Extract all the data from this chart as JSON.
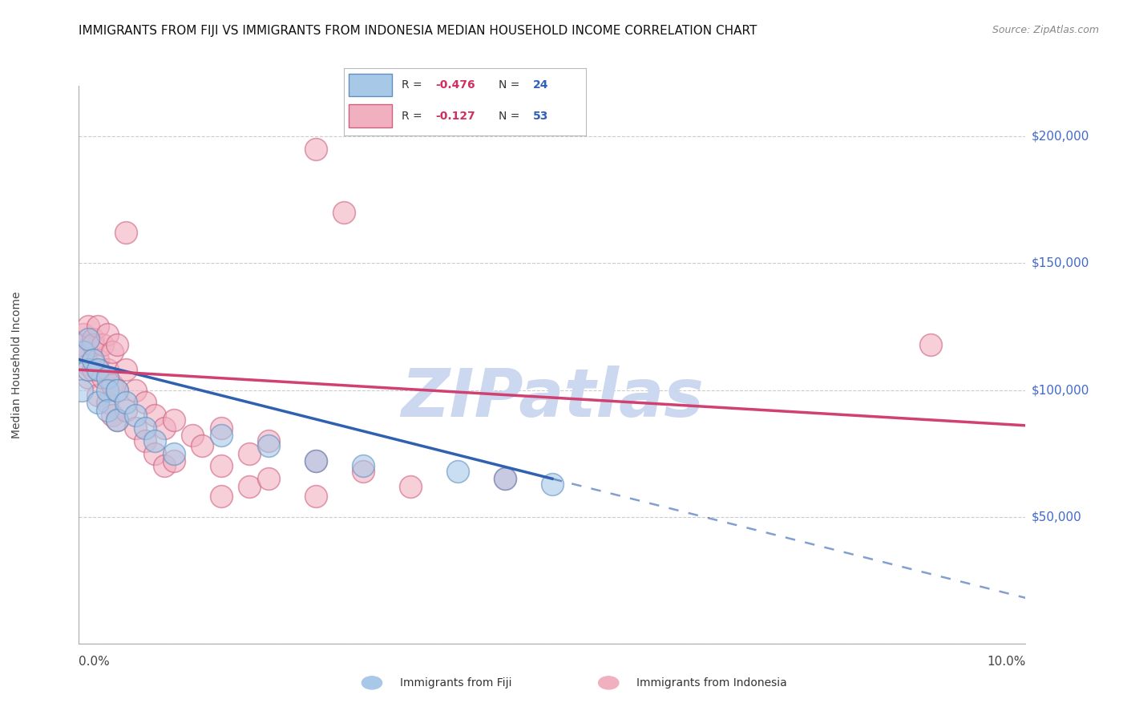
{
  "title": "IMMIGRANTS FROM FIJI VS IMMIGRANTS FROM INDONESIA MEDIAN HOUSEHOLD INCOME CORRELATION CHART",
  "source": "Source: ZipAtlas.com",
  "ylabel": "Median Household Income",
  "yticks": [
    0,
    50000,
    100000,
    150000,
    200000
  ],
  "ytick_labels": [
    "",
    "$50,000",
    "$100,000",
    "$150,000",
    "$200,000"
  ],
  "ytick_color": "#4169c8",
  "xlim": [
    0.0,
    0.1
  ],
  "ylim": [
    0,
    220000
  ],
  "fiji_color": "#a8c8e8",
  "fiji_color_edge": "#6090c0",
  "indonesia_color": "#f0b0c0",
  "indonesia_color_edge": "#d06080",
  "fiji_R": -0.476,
  "fiji_N": 24,
  "indonesia_R": -0.127,
  "indonesia_N": 53,
  "watermark_text": "ZIPatlas",
  "fiji_points": [
    [
      0.0003,
      100000
    ],
    [
      0.0005,
      115000
    ],
    [
      0.001,
      120000
    ],
    [
      0.001,
      108000
    ],
    [
      0.0015,
      112000
    ],
    [
      0.002,
      108000
    ],
    [
      0.002,
      95000
    ],
    [
      0.003,
      105000
    ],
    [
      0.003,
      100000
    ],
    [
      0.003,
      92000
    ],
    [
      0.004,
      100000
    ],
    [
      0.004,
      88000
    ],
    [
      0.005,
      95000
    ],
    [
      0.006,
      90000
    ],
    [
      0.007,
      85000
    ],
    [
      0.008,
      80000
    ],
    [
      0.01,
      75000
    ],
    [
      0.015,
      82000
    ],
    [
      0.02,
      78000
    ],
    [
      0.025,
      72000
    ],
    [
      0.03,
      70000
    ],
    [
      0.04,
      68000
    ],
    [
      0.045,
      65000
    ],
    [
      0.05,
      63000
    ]
  ],
  "indonesia_points": [
    [
      0.0004,
      118000
    ],
    [
      0.0005,
      122000
    ],
    [
      0.0008,
      115000
    ],
    [
      0.001,
      125000
    ],
    [
      0.001,
      110000
    ],
    [
      0.001,
      105000
    ],
    [
      0.0015,
      120000
    ],
    [
      0.0015,
      108000
    ],
    [
      0.0015,
      118000
    ],
    [
      0.002,
      125000
    ],
    [
      0.002,
      112000
    ],
    [
      0.002,
      98000
    ],
    [
      0.0025,
      118000
    ],
    [
      0.0025,
      105000
    ],
    [
      0.003,
      122000
    ],
    [
      0.003,
      108000
    ],
    [
      0.003,
      95000
    ],
    [
      0.0035,
      115000
    ],
    [
      0.0035,
      102000
    ],
    [
      0.0035,
      90000
    ],
    [
      0.004,
      118000
    ],
    [
      0.004,
      100000
    ],
    [
      0.004,
      88000
    ],
    [
      0.005,
      108000
    ],
    [
      0.005,
      92000
    ],
    [
      0.005,
      162000
    ],
    [
      0.006,
      100000
    ],
    [
      0.006,
      85000
    ],
    [
      0.007,
      95000
    ],
    [
      0.007,
      80000
    ],
    [
      0.008,
      90000
    ],
    [
      0.008,
      75000
    ],
    [
      0.009,
      85000
    ],
    [
      0.009,
      70000
    ],
    [
      0.01,
      88000
    ],
    [
      0.01,
      72000
    ],
    [
      0.012,
      82000
    ],
    [
      0.013,
      78000
    ],
    [
      0.015,
      85000
    ],
    [
      0.015,
      70000
    ],
    [
      0.015,
      58000
    ],
    [
      0.018,
      75000
    ],
    [
      0.018,
      62000
    ],
    [
      0.02,
      80000
    ],
    [
      0.02,
      65000
    ],
    [
      0.025,
      72000
    ],
    [
      0.025,
      58000
    ],
    [
      0.025,
      195000
    ],
    [
      0.028,
      170000
    ],
    [
      0.03,
      68000
    ],
    [
      0.035,
      62000
    ],
    [
      0.045,
      65000
    ],
    [
      0.09,
      118000
    ]
  ],
  "fiji_line_color": "#3060b0",
  "indonesia_line_color": "#d04070",
  "bg_color": "#ffffff",
  "grid_color": "#cccccc",
  "title_fontsize": 11,
  "label_fontsize": 10,
  "tick_fontsize": 11,
  "watermark_color": "#ccd8f0",
  "watermark_fontsize": 60,
  "legend_fiji_R": "R = ",
  "legend_fiji_Rval": "-0.476",
  "legend_fiji_N": "N = ",
  "legend_fiji_Nval": "24",
  "legend_indo_R": "R = ",
  "legend_indo_Rval": "-0.127",
  "legend_indo_N": "N = ",
  "legend_indo_Nval": "53",
  "bottom_label_fiji": "Immigrants from Fiji",
  "bottom_label_indonesia": "Immigrants from Indonesia"
}
